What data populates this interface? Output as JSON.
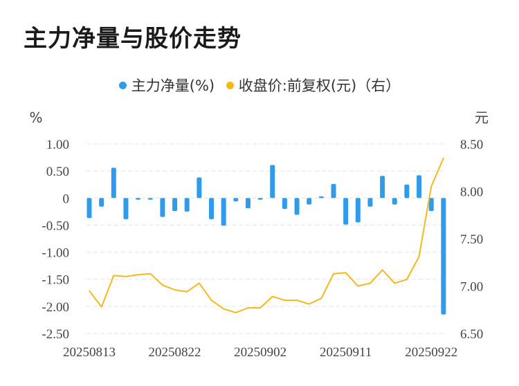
{
  "chart_data": {
    "type": "bar+line",
    "title": "主力净量与股价走势",
    "legend": {
      "position": "top-center",
      "items": [
        {
          "label": "主力净量(%)",
          "color": "#2f9bea"
        },
        {
          "label": "收盘价:前复权(元)（右）",
          "color": "#f5b81c"
        }
      ]
    },
    "y_left": {
      "unit": "%",
      "ticks": [
        "1.00",
        "0.50",
        "0",
        "-0.50",
        "-1.00",
        "-1.50",
        "-2.00",
        "-2.50"
      ],
      "range": [
        -2.5,
        1.0
      ]
    },
    "y_right": {
      "unit": "元",
      "ticks": [
        "8.50",
        "8.00",
        "7.50",
        "7.00",
        "6.50"
      ],
      "range": [
        6.5,
        8.5
      ]
    },
    "x_tick_labels": [
      "20250813",
      "20250822",
      "20250902",
      "20250911",
      "20250922"
    ],
    "grid": "horizontal dashed",
    "series": [
      {
        "name": "主力净量(%)",
        "type": "bar",
        "color": "#2f9bea",
        "values": [
          -0.37,
          -0.16,
          0.56,
          -0.39,
          -0.03,
          -0.03,
          -0.35,
          -0.24,
          -0.25,
          0.38,
          -0.39,
          -0.51,
          -0.06,
          -0.19,
          -0.03,
          0.61,
          -0.2,
          -0.31,
          -0.12,
          0.03,
          0.26,
          -0.49,
          -0.45,
          -0.16,
          0.41,
          -0.12,
          0.25,
          0.42,
          -0.24,
          -2.15
        ]
      },
      {
        "name": "收盘价:前复权(元)（右）",
        "type": "line",
        "color": "#f5b81c",
        "values": [
          6.95,
          6.78,
          7.11,
          7.1,
          7.12,
          7.13,
          7.01,
          6.96,
          6.94,
          7.03,
          6.85,
          6.76,
          6.72,
          6.77,
          6.77,
          6.89,
          6.85,
          6.85,
          6.81,
          6.87,
          7.13,
          7.14,
          7.0,
          7.03,
          7.17,
          7.03,
          7.07,
          7.31,
          8.05,
          8.35
        ]
      }
    ]
  }
}
